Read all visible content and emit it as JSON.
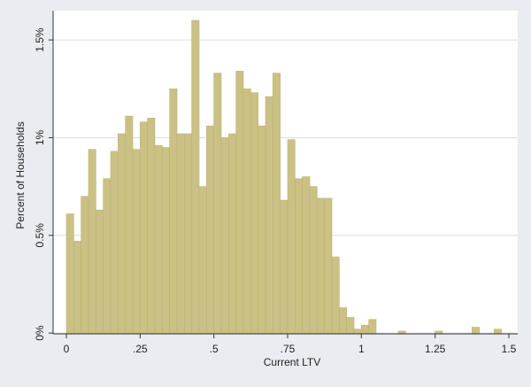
{
  "chart_data": {
    "type": "histogram",
    "x_label": "Current LTV",
    "y_label": "Percent of Households",
    "bins": [
      0,
      0.025,
      0.05,
      0.075,
      0.1,
      0.125,
      0.15,
      0.175,
      0.2,
      0.225,
      0.25,
      0.275,
      0.3,
      0.325,
      0.35,
      0.375,
      0.4,
      0.425,
      0.45,
      0.475,
      0.5,
      0.525,
      0.55,
      0.575,
      0.6,
      0.625,
      0.65,
      0.675,
      0.7,
      0.725,
      0.75,
      0.775,
      0.8,
      0.825,
      0.85,
      0.875,
      0.9,
      0.925,
      0.95,
      0.975,
      1,
      1.025,
      1.05,
      1.075,
      1.1,
      1.125,
      1.15,
      1.175,
      1.2,
      1.225,
      1.25,
      1.275,
      1.3,
      1.325,
      1.35,
      1.375,
      1.4,
      1.425,
      1.45,
      1.475,
      1.5
    ],
    "values": [
      0.61,
      0.47,
      0.7,
      0.94,
      0.63,
      0.79,
      0.93,
      1.02,
      1.11,
      0.94,
      1.08,
      1.1,
      0.96,
      0.95,
      1.25,
      1.02,
      1.02,
      1.6,
      0.75,
      1.06,
      1.33,
      1.0,
      1.02,
      1.34,
      1.25,
      1.23,
      1.06,
      1.21,
      1.33,
      0.68,
      0.99,
      0.79,
      0.8,
      0.75,
      0.69,
      0.69,
      0.39,
      0.13,
      0.08,
      0.02,
      0.04,
      0.07,
      0,
      0,
      0,
      0.01,
      0,
      0,
      0,
      0,
      0.01,
      0,
      0,
      0,
      0,
      0.03,
      0,
      0,
      0.02,
      0
    ],
    "color": "#cbc184",
    "xlim": [
      -0.045,
      1.53
    ],
    "xticks": [
      0,
      {
        "value": 0.25,
        "label": ".25"
      },
      {
        "value": 0.5,
        "label": ".5"
      },
      {
        "value": 0.75,
        "label": ".75"
      },
      1,
      1.25,
      1.5
    ],
    "ylim": [
      -0.004,
      1.65
    ],
    "yticks": [
      {
        "value": 0,
        "label": "0%"
      },
      {
        "value": 0.5,
        "label": "0.5%"
      },
      {
        "value": 1,
        "label": "1%"
      },
      {
        "value": 1.5,
        "label": "1.5%"
      }
    ],
    "grid": true
  }
}
